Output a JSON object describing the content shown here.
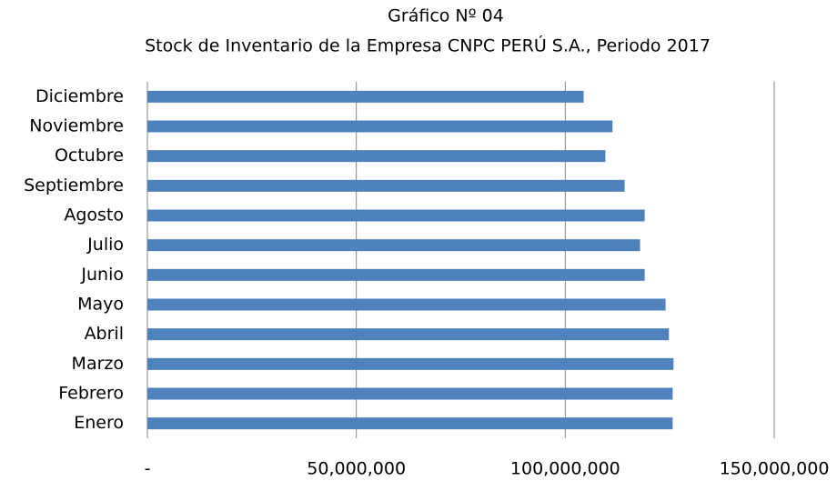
{
  "chart_data": {
    "type": "bar",
    "orientation": "horizontal",
    "title": "Gráfico Nº 04",
    "subtitle": "Stock de Inventario de la Empresa CNPC PERÚ S.A., Periodo 2017",
    "categories": [
      "Enero",
      "Febrero",
      "Marzo",
      "Abril",
      "Mayo",
      "Junio",
      "Julio",
      "Agosto",
      "Septiembre",
      "Octubre",
      "Noviembre",
      "Diciembre"
    ],
    "values": [
      125700000,
      125700000,
      125900000,
      124800000,
      124000000,
      119000000,
      117900000,
      119000000,
      114200000,
      109600000,
      111300000,
      104400000
    ],
    "color": "#4f81bd",
    "xlim": [
      0,
      150000000
    ],
    "xticks": [
      {
        "value": 0,
        "label": "-"
      },
      {
        "value": 50000000,
        "label": "50,000,000"
      },
      {
        "value": 100000000,
        "label": "100,000,000"
      },
      {
        "value": 150000000,
        "label": "150,000,000"
      }
    ],
    "grid": true
  }
}
